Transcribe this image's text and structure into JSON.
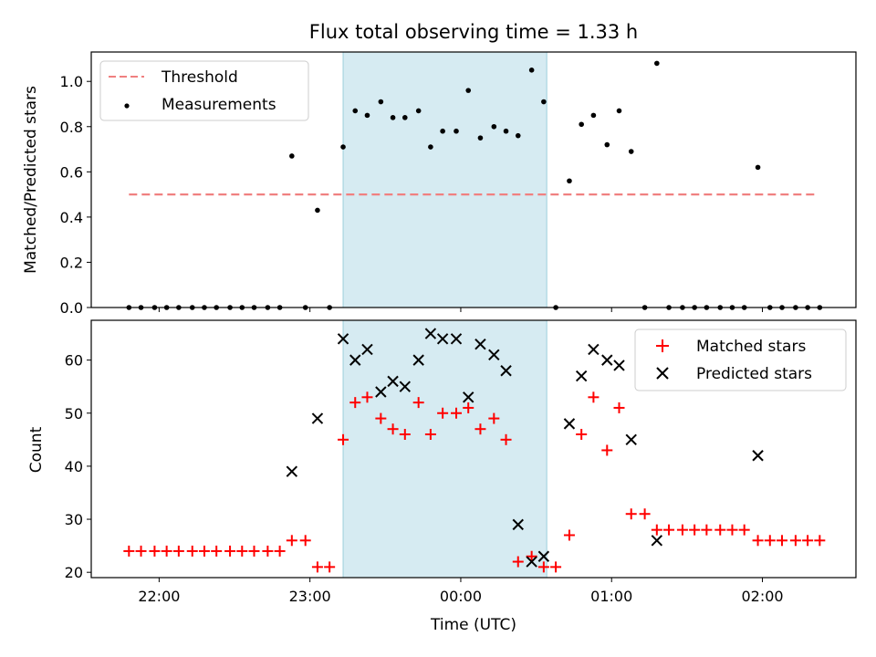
{
  "chart_data": [
    {
      "type": "scatter",
      "title": "Flux total observing time = 1.33 h",
      "xlabel": "",
      "ylabel": "Matched/Predicted stars",
      "ylim": [
        0,
        1.13
      ],
      "yticks": [
        "0.0",
        "0.2",
        "0.4",
        "0.6",
        "0.8",
        "1.0"
      ],
      "x_unit": "hours since 00:00 UTC",
      "xlim": [
        -2.45,
        2.62
      ],
      "highlight_span": [
        -0.78,
        0.57
      ],
      "legend_position": "top-left",
      "legend": {
        "threshold_label": "Threshold",
        "measurements_label": "Measurements"
      },
      "threshold": {
        "name": "Threshold",
        "value": 0.5,
        "x_range": [
          -2.2,
          2.37
        ],
        "color": "#f08080"
      },
      "series": [
        {
          "name": "Measurements",
          "color": "#000000",
          "x": [
            -2.2,
            -2.12,
            -2.03,
            -1.95,
            -1.87,
            -1.78,
            -1.7,
            -1.62,
            -1.53,
            -1.45,
            -1.37,
            -1.28,
            -1.2,
            -1.12,
            -1.03,
            -0.95,
            -0.87,
            -0.78,
            -0.7,
            -0.62,
            -0.53,
            -0.45,
            -0.37,
            -0.28,
            -0.2,
            -0.12,
            -0.03,
            0.05,
            0.13,
            0.22,
            0.3,
            0.38,
            0.47,
            0.55,
            0.63,
            0.72,
            0.8,
            0.88,
            0.97,
            1.05,
            1.13,
            1.22,
            1.3,
            1.38,
            1.47,
            1.55,
            1.63,
            1.72,
            1.8,
            1.88,
            1.97,
            2.05,
            2.13,
            2.22,
            2.3,
            2.38
          ],
          "y": [
            0,
            0,
            0,
            0,
            0,
            0,
            0,
            0,
            0,
            0,
            0,
            0,
            0,
            0.67,
            0,
            0.43,
            0,
            0.71,
            0.87,
            0.85,
            0.91,
            0.84,
            0.84,
            0.87,
            0.71,
            0.78,
            0.78,
            0.96,
            0.75,
            0.8,
            0.78,
            0.76,
            1.05,
            0.91,
            0,
            0.56,
            0.81,
            0.85,
            0.72,
            0.87,
            0.69,
            0,
            1.08,
            0,
            0,
            0,
            0,
            0,
            0,
            0,
            0.62,
            0,
            0,
            0,
            0,
            0
          ]
        }
      ]
    },
    {
      "type": "scatter",
      "title": "",
      "xlabel": "Time (UTC)",
      "ylabel": "Count",
      "ylim": [
        19,
        67.5
      ],
      "yticks": [
        "20",
        "30",
        "40",
        "50",
        "60"
      ],
      "xticks": [
        {
          "pos": -2,
          "label": "22:00"
        },
        {
          "pos": -1,
          "label": "23:00"
        },
        {
          "pos": 0,
          "label": "00:00"
        },
        {
          "pos": 1,
          "label": "01:00"
        },
        {
          "pos": 2,
          "label": "02:00"
        }
      ],
      "x_unit": "hours since 00:00 UTC",
      "xlim": [
        -2.45,
        2.62
      ],
      "highlight_span": [
        -0.78,
        0.57
      ],
      "legend_position": "top-right",
      "legend": {
        "matched_label": "Matched stars",
        "predicted_label": "Predicted stars"
      },
      "series": [
        {
          "name": "Matched stars",
          "marker": "plus",
          "color": "#ff0000",
          "x": [
            -2.2,
            -2.12,
            -2.03,
            -1.95,
            -1.87,
            -1.78,
            -1.7,
            -1.62,
            -1.53,
            -1.45,
            -1.37,
            -1.28,
            -1.2,
            -1.12,
            -1.03,
            -0.95,
            -0.87,
            -0.78,
            -0.7,
            -0.62,
            -0.53,
            -0.45,
            -0.37,
            -0.28,
            -0.2,
            -0.12,
            -0.03,
            0.05,
            0.13,
            0.22,
            0.3,
            0.38,
            0.47,
            0.55,
            0.63,
            0.72,
            0.8,
            0.88,
            0.97,
            1.05,
            1.13,
            1.22,
            1.3,
            1.38,
            1.47,
            1.55,
            1.63,
            1.72,
            1.8,
            1.88,
            1.97,
            2.05,
            2.13,
            2.22,
            2.3,
            2.38
          ],
          "y": [
            24,
            24,
            24,
            24,
            24,
            24,
            24,
            24,
            24,
            24,
            24,
            24,
            24,
            26,
            26,
            21,
            21,
            45,
            52,
            53,
            49,
            47,
            46,
            52,
            46,
            50,
            50,
            51,
            47,
            49,
            45,
            22,
            23,
            21,
            21,
            27,
            46,
            53,
            43,
            51,
            31,
            31,
            28,
            28,
            28,
            28,
            28,
            28,
            28,
            28,
            26,
            26,
            26,
            26,
            26,
            26
          ]
        },
        {
          "name": "Predicted stars",
          "marker": "x",
          "color": "#000000",
          "x": [
            -1.12,
            -0.95,
            -0.78,
            -0.7,
            -0.62,
            -0.53,
            -0.45,
            -0.37,
            -0.28,
            -0.2,
            -0.12,
            -0.03,
            0.05,
            0.13,
            0.22,
            0.3,
            0.38,
            0.47,
            0.55,
            0.72,
            0.8,
            0.88,
            0.97,
            1.05,
            1.13,
            1.3,
            1.97
          ],
          "y": [
            39,
            49,
            64,
            60,
            62,
            54,
            56,
            55,
            60,
            65,
            64,
            64,
            53,
            63,
            61,
            58,
            29,
            22,
            23,
            48,
            57,
            62,
            60,
            59,
            45,
            26,
            42
          ]
        }
      ]
    }
  ]
}
